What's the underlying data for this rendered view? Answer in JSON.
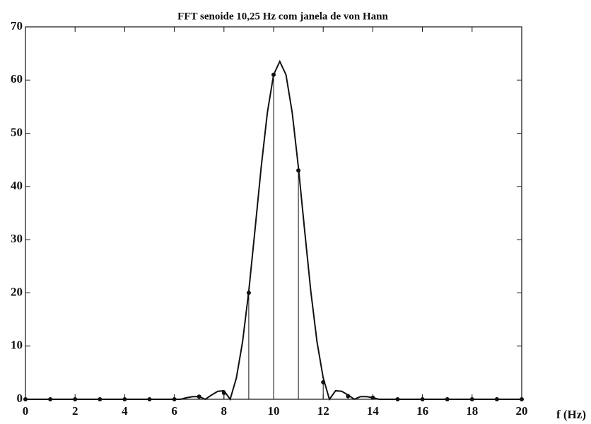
{
  "chart_data": {
    "type": "stem",
    "title": "FFT senoide 10,25 Hz com janela de von Hann",
    "xlabel": "f (Hz)",
    "xlim": [
      0,
      20
    ],
    "ylim": [
      0,
      70
    ],
    "xticks": [
      0,
      2,
      4,
      6,
      8,
      10,
      12,
      14,
      16,
      18,
      20
    ],
    "yticks": [
      0,
      10,
      20,
      30,
      40,
      50,
      60,
      70
    ],
    "grid": false,
    "color": "#111111",
    "x": [
      0,
      1,
      2,
      3,
      4,
      5,
      6,
      7,
      8,
      9,
      10,
      11,
      12,
      13,
      14,
      15,
      16,
      17,
      18,
      19,
      20
    ],
    "values": [
      0,
      0,
      0,
      0,
      0,
      0,
      0,
      0.5,
      1.2,
      20,
      61,
      43,
      3.2,
      0.6,
      0.3,
      0,
      0,
      0,
      0,
      0,
      0
    ],
    "curve": {
      "x": [
        0,
        6,
        6.25,
        6.5,
        6.75,
        7,
        7.25,
        7.5,
        7.75,
        8,
        8.25,
        8.5,
        8.75,
        9,
        9.25,
        9.5,
        9.75,
        10,
        10.25,
        10.5,
        10.75,
        11,
        11.25,
        11.5,
        11.75,
        12,
        12.25,
        12.5,
        12.75,
        13,
        13.25,
        13.5,
        13.75,
        14,
        14.25,
        20
      ],
      "values": [
        0,
        0,
        0,
        0.3,
        0.5,
        0.5,
        0,
        0.8,
        1.5,
        1.6,
        0,
        4,
        10.8,
        20.3,
        31.8,
        43.6,
        53.9,
        61,
        63.5,
        61,
        53.9,
        43.6,
        31.8,
        20.3,
        10.8,
        4,
        0,
        1.6,
        1.5,
        0.8,
        0,
        0.5,
        0.5,
        0.3,
        0,
        0
      ]
    }
  }
}
